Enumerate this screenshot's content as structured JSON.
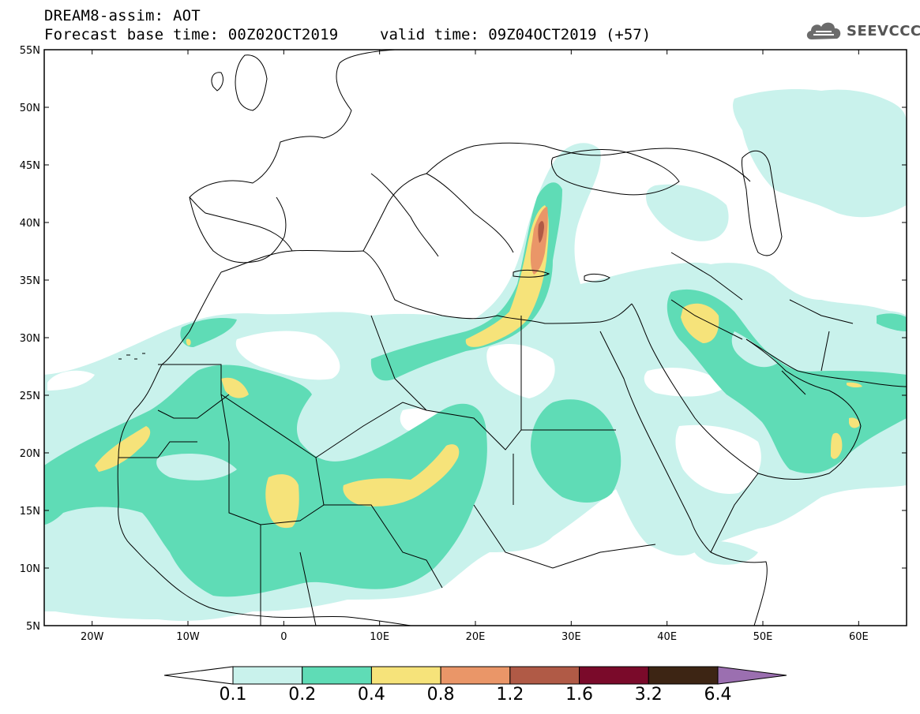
{
  "header": {
    "title_line1": "DREAM8-assim: AOT",
    "title_line2a": "Forecast base time: 00Z02OCT2019",
    "title_line2b": "valid time: 09Z04OCT2019 (+57)",
    "logo_text": "SEEVCCC"
  },
  "axes": {
    "lat_labels": [
      "55N",
      "50N",
      "45N",
      "40N",
      "35N",
      "30N",
      "25N",
      "20N",
      "15N",
      "10N",
      "5N"
    ],
    "lon_labels": [
      "20W",
      "10W",
      "0",
      "10E",
      "20E",
      "30E",
      "40E",
      "50E",
      "60E"
    ]
  },
  "colorbar": {
    "labels": [
      "0.1",
      "0.2",
      "0.4",
      "0.8",
      "1.2",
      "1.6",
      "3.2",
      "6.4"
    ],
    "colors": [
      "#ffffff",
      "#c9f2ec",
      "#5fdcb6",
      "#f6e37a",
      "#ea9668",
      "#b05a46",
      "#7a0a2a",
      "#3d2514",
      "#9b6fb0"
    ]
  },
  "colors": {
    "level_0_1": "#c9f2ec",
    "level_0_2": "#5fdcb6",
    "level_0_4": "#f6e37a",
    "level_0_8": "#ea9668",
    "level_1_2": "#b05a46"
  }
}
